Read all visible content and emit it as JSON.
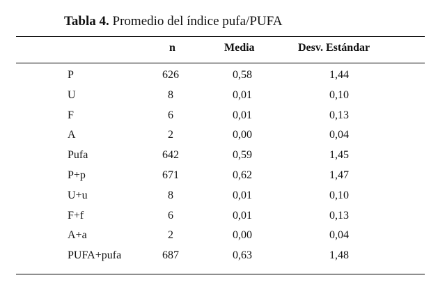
{
  "caption": {
    "label": "Tabla 4.",
    "text": " Promedio del índice pufa/PUFA"
  },
  "headers": {
    "label": "",
    "n": "n",
    "media": "Media",
    "desv": "Desv. Estándar"
  },
  "rows": [
    {
      "label": "P",
      "n": "626",
      "media": "0,58",
      "desv": "1,44"
    },
    {
      "label": "U",
      "n": "8",
      "media": "0,01",
      "desv": "0,10"
    },
    {
      "label": "F",
      "n": "6",
      "media": "0,01",
      "desv": "0,13"
    },
    {
      "label": "A",
      "n": "2",
      "media": "0,00",
      "desv": "0,04"
    },
    {
      "label": "Pufa",
      "n": "642",
      "media": "0,59",
      "desv": "1,45"
    },
    {
      "label": "P+p",
      "n": "671",
      "media": "0,62",
      "desv": "1,47"
    },
    {
      "label": "U+u",
      "n": "8",
      "media": "0,01",
      "desv": "0,10"
    },
    {
      "label": "F+f",
      "n": "6",
      "media": "0,01",
      "desv": "0,13"
    },
    {
      "label": "A+a",
      "n": "2",
      "media": "0,00",
      "desv": "0,04"
    },
    {
      "label": "PUFA+pufa",
      "n": "687",
      "media": "0,63",
      "desv": "1,48"
    }
  ]
}
